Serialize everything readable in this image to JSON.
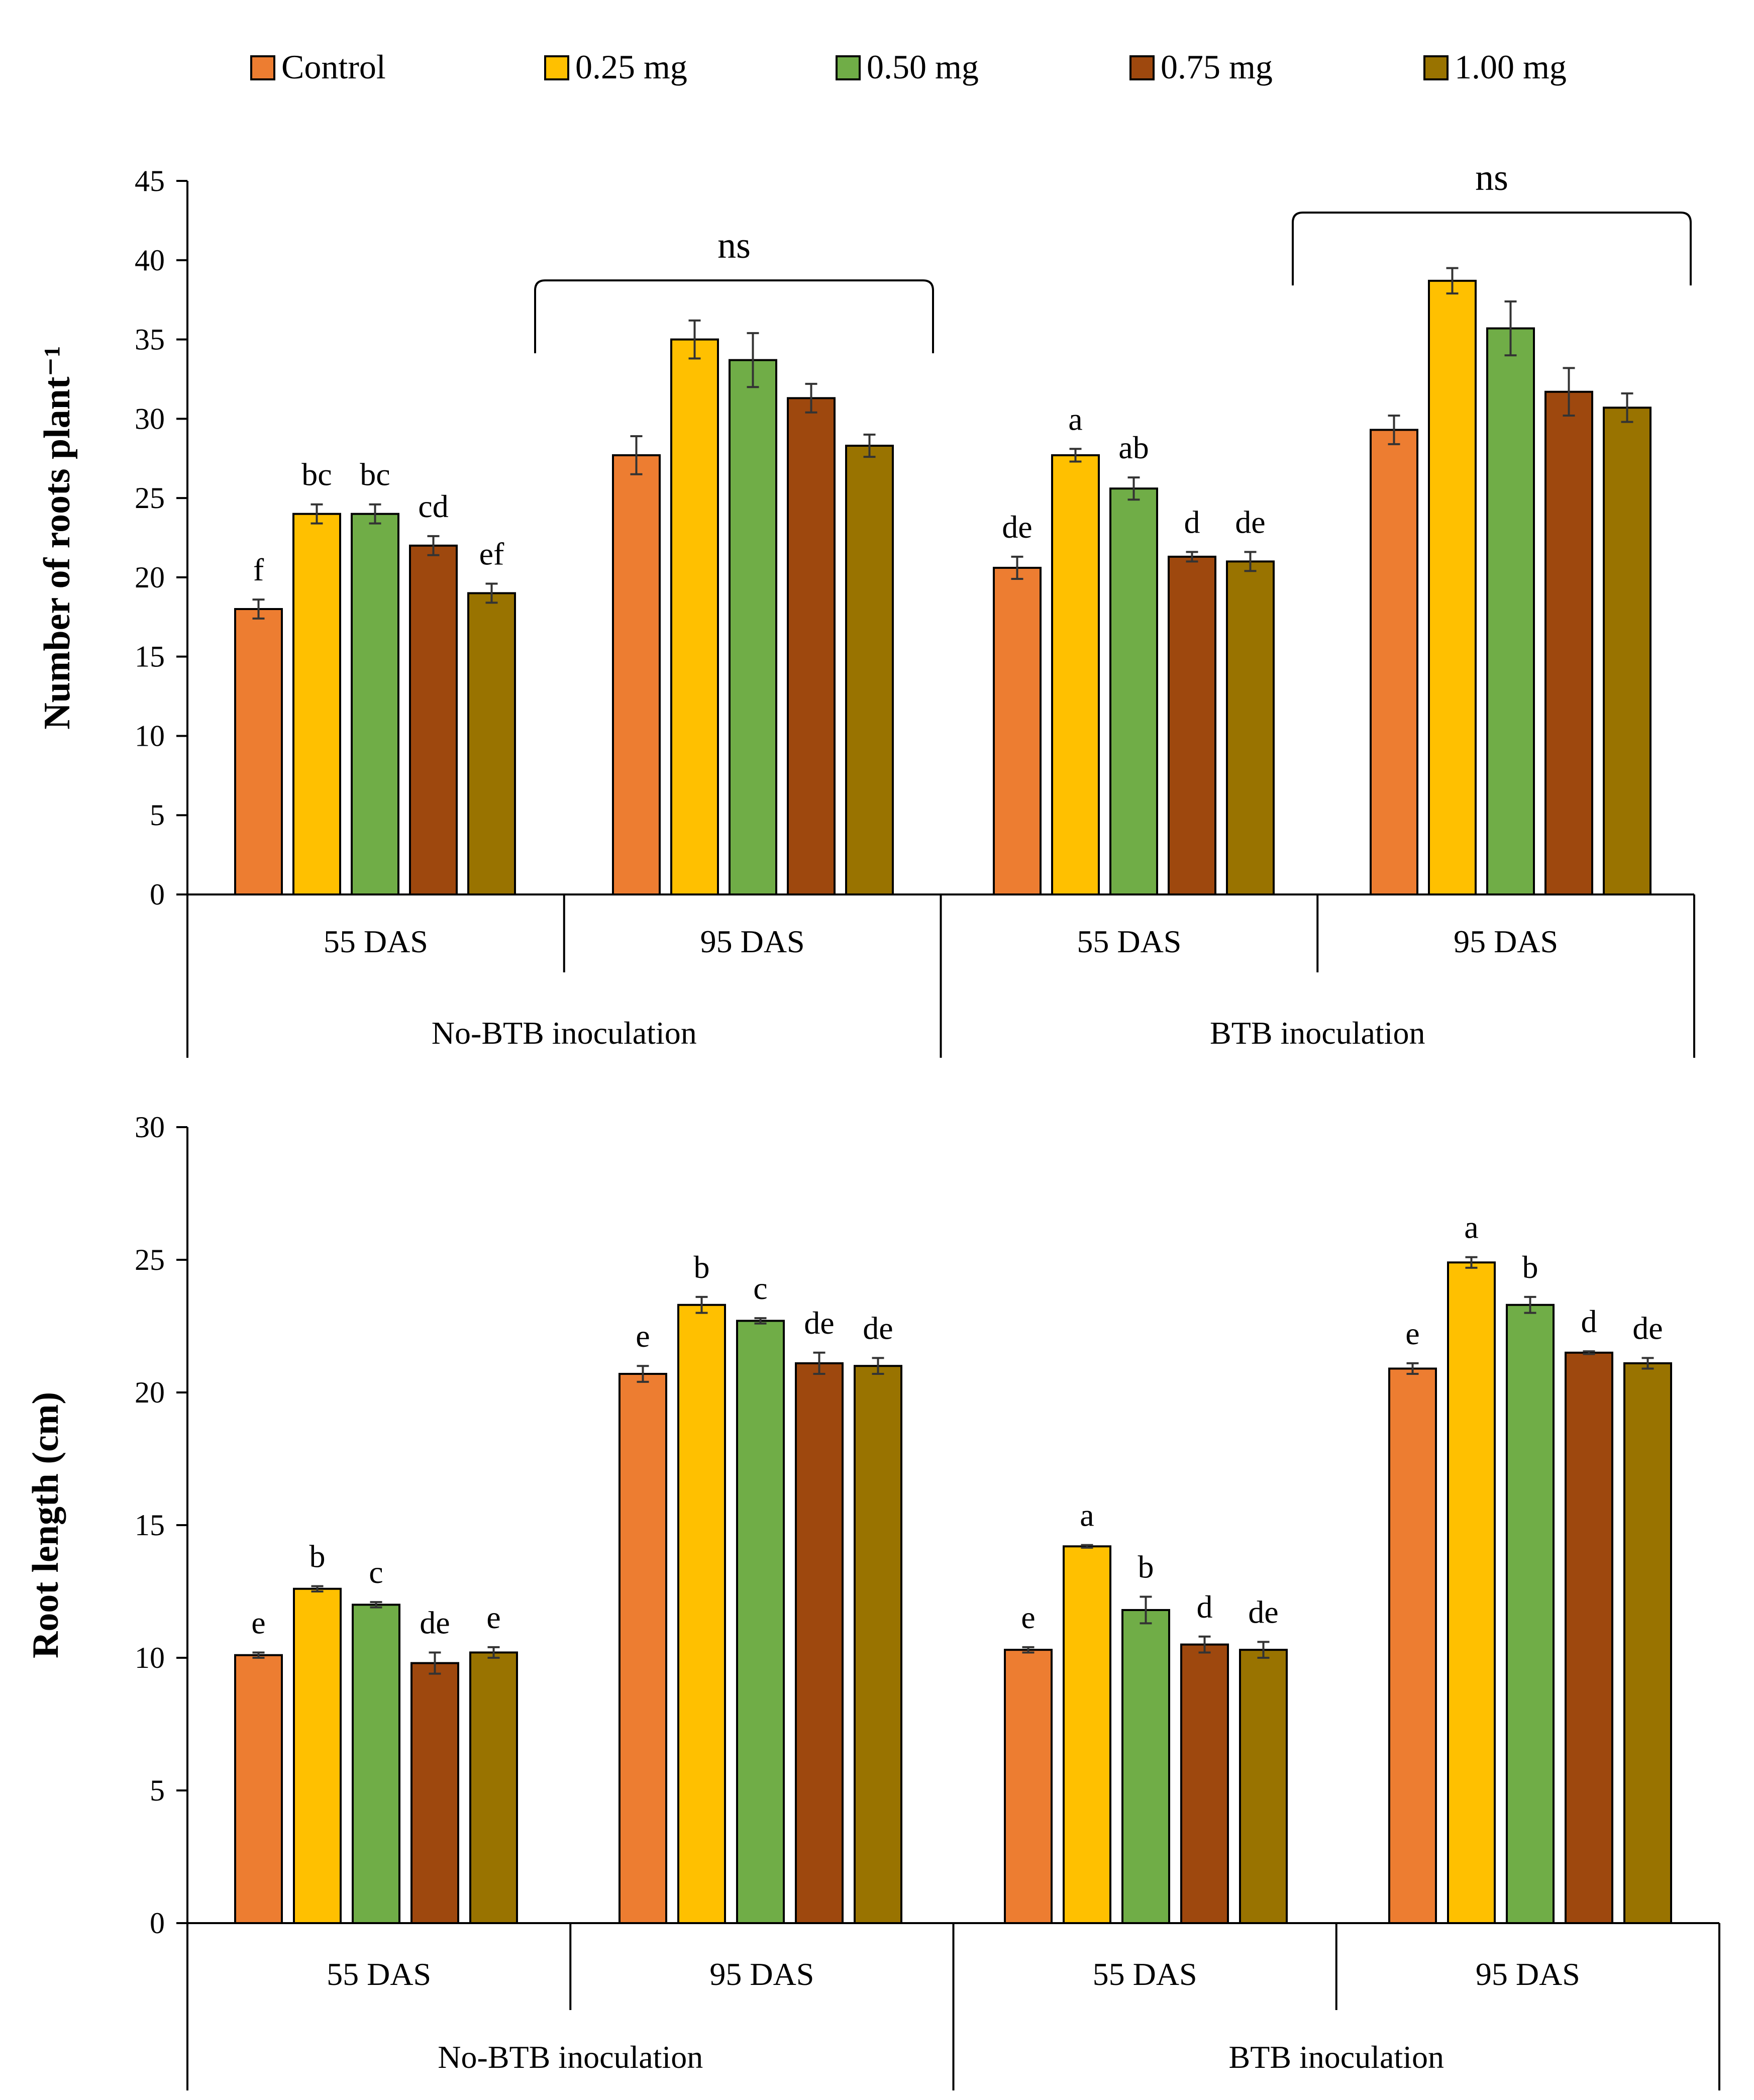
{
  "legend": [
    {
      "label": "Control",
      "color": "#ED7D31"
    },
    {
      "label": "0.25 mg",
      "color": "#FFC000"
    },
    {
      "label": "0.50 mg",
      "color": "#70AD47"
    },
    {
      "label": "0.75 mg",
      "color": "#9E480E"
    },
    {
      "label": "1.00 mg",
      "color": "#997300"
    }
  ],
  "chart_data": [
    {
      "type": "bar",
      "title": "",
      "ylabel": "Number of roots plant⁻¹",
      "xlabel": "",
      "ylim": [
        0,
        45
      ],
      "yticks": [
        0,
        5,
        10,
        15,
        20,
        25,
        30,
        35,
        40,
        45
      ],
      "grid": false,
      "group_labels": [
        "No-BTB inoculation",
        "BTB inoculation"
      ],
      "categories": [
        "55 DAS",
        "95 DAS",
        "55 DAS",
        "95 DAS"
      ],
      "series": [
        {
          "name": "Control",
          "values": [
            18.0,
            27.7,
            20.6,
            29.3
          ],
          "errors": [
            0.6,
            1.2,
            0.7,
            0.9
          ],
          "letters": [
            "f",
            "",
            "de",
            ""
          ]
        },
        {
          "name": "0.25 mg",
          "values": [
            24.0,
            35.0,
            27.7,
            38.7
          ],
          "errors": [
            0.6,
            1.2,
            0.4,
            0.8
          ],
          "letters": [
            "bc",
            "",
            "a",
            ""
          ]
        },
        {
          "name": "0.50 mg",
          "values": [
            24.0,
            33.7,
            25.6,
            35.7
          ],
          "errors": [
            0.6,
            1.7,
            0.7,
            1.7
          ],
          "letters": [
            "bc",
            "",
            "ab",
            ""
          ]
        },
        {
          "name": "0.75 mg",
          "values": [
            22.0,
            31.3,
            21.3,
            31.7
          ],
          "errors": [
            0.6,
            0.9,
            0.3,
            1.5
          ],
          "letters": [
            "cd",
            "",
            "d",
            ""
          ]
        },
        {
          "name": "1.00 mg",
          "values": [
            19.0,
            28.3,
            21.0,
            30.7
          ],
          "errors": [
            0.6,
            0.7,
            0.6,
            0.9
          ],
          "letters": [
            "ef",
            "",
            "de",
            ""
          ]
        }
      ],
      "annotations": [
        {
          "text": "ns",
          "spans_category": 1
        },
        {
          "text": "ns",
          "spans_category": 3
        }
      ]
    },
    {
      "type": "bar",
      "title": "",
      "ylabel": "Root length (cm)",
      "xlabel": "",
      "ylim": [
        0,
        30
      ],
      "yticks": [
        0,
        5,
        10,
        15,
        20,
        25,
        30
      ],
      "grid": false,
      "group_labels": [
        "No-BTB inoculation",
        "BTB inoculation"
      ],
      "categories": [
        "55 DAS",
        "95 DAS",
        "55 DAS",
        "95 DAS"
      ],
      "series": [
        {
          "name": "Control",
          "values": [
            10.1,
            20.7,
            10.3,
            20.9
          ],
          "errors": [
            0.1,
            0.3,
            0.1,
            0.2
          ],
          "letters": [
            "e",
            "e",
            "e",
            "e"
          ]
        },
        {
          "name": "0.25 mg",
          "values": [
            12.6,
            23.3,
            14.2,
            24.9
          ],
          "errors": [
            0.1,
            0.3,
            0.05,
            0.2
          ],
          "letters": [
            "b",
            "b",
            "a",
            "a"
          ]
        },
        {
          "name": "0.50 mg",
          "values": [
            12.0,
            22.7,
            11.8,
            23.3
          ],
          "errors": [
            0.1,
            0.1,
            0.5,
            0.3
          ],
          "letters": [
            "c",
            "c",
            "b",
            "b"
          ]
        },
        {
          "name": "0.75 mg",
          "values": [
            9.8,
            21.1,
            10.5,
            21.5
          ],
          "errors": [
            0.4,
            0.4,
            0.3,
            0.05
          ],
          "letters": [
            "de",
            "de",
            "d",
            "d"
          ]
        },
        {
          "name": "1.00 mg",
          "values": [
            10.2,
            21.0,
            10.3,
            21.1
          ],
          "errors": [
            0.2,
            0.3,
            0.3,
            0.2
          ],
          "letters": [
            "e",
            "de",
            "de",
            "de"
          ]
        }
      ],
      "annotations": []
    }
  ]
}
